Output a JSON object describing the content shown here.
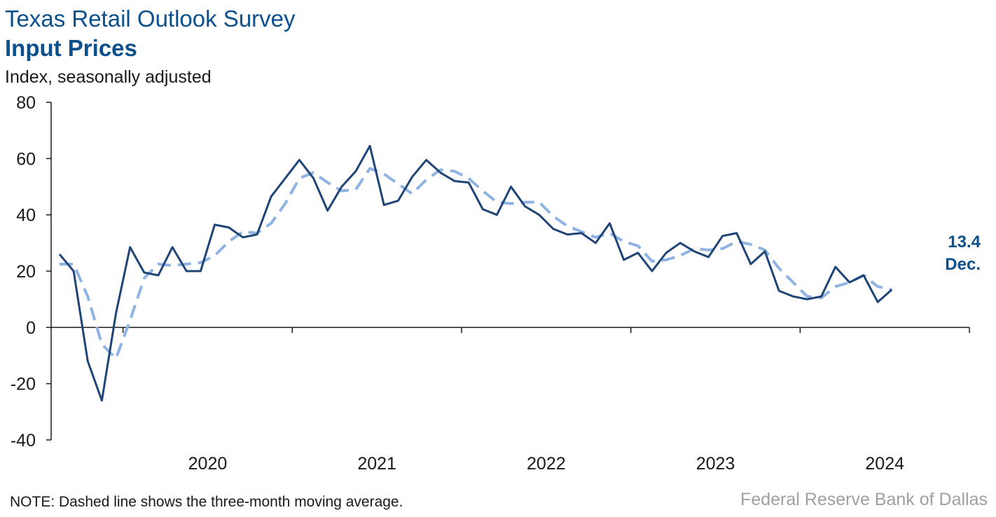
{
  "header": {
    "title": "Texas Retail Outlook Survey",
    "subtitle": "Input Prices",
    "units": "Index, seasonally adjusted"
  },
  "footer": {
    "note": "NOTE: Dashed line shows the three-month moving average.",
    "source": "Federal Reserve Bank of Dallas"
  },
  "colors": {
    "index_line": "#1f4476",
    "moving_average": "#8fb4e3",
    "title": "#0b4f8c",
    "axis": "#1a1a1a",
    "source_text": "#a0a0a0"
  },
  "chart_data": {
    "type": "line",
    "title": "Input Prices",
    "ylabel": "Index, seasonally adjusted",
    "xlabel": "",
    "ylim": [
      -40,
      80
    ],
    "y_ticks": [
      80,
      60,
      40,
      20,
      0,
      -20,
      -40
    ],
    "x_ticks": [
      "2020",
      "2021",
      "2022",
      "2023",
      "2024"
    ],
    "x_start": "2019-08",
    "x_end": "2024-12",
    "grid": false,
    "legend": "none",
    "series": [
      {
        "style": "solid",
        "values": [
          26,
          20,
          -12,
          -26,
          5,
          28.5,
          19.5,
          18.5,
          28.5,
          20,
          20,
          36.5,
          35.5,
          32,
          33,
          46.5,
          53,
          59.5,
          53,
          41.5,
          50,
          55.5,
          64.5,
          43.5,
          45,
          53.5,
          59.5,
          55,
          52,
          51.5,
          42,
          40,
          50,
          43,
          40,
          35,
          33,
          33.5,
          30,
          37,
          24,
          26.5,
          20,
          26.5,
          30,
          27,
          25,
          32.5,
          33.5,
          22.5,
          27,
          13,
          11,
          10,
          11,
          21.5,
          16,
          18.5,
          9,
          13.4
        ]
      },
      {
        "style": "dashed",
        "values": [
          22.5,
          22.5,
          11,
          -6,
          -11,
          2.5,
          17.5,
          22.5,
          22,
          22.5,
          23,
          25.5,
          30.5,
          34,
          33.5,
          37,
          44,
          53,
          55,
          51.5,
          48.5,
          49,
          56.5,
          54.5,
          51,
          47.5,
          52.5,
          56,
          55.5,
          53,
          48.5,
          44.5,
          44,
          44.5,
          44.5,
          39.5,
          36,
          34,
          32,
          33.5,
          30.5,
          29,
          23.5,
          24,
          25.5,
          28,
          27.5,
          28,
          30.5,
          29.5,
          27.5,
          21,
          16,
          11,
          10.5,
          14.5,
          16,
          18.5,
          14.5,
          13.4
        ]
      }
    ],
    "annotation": {
      "value": "13.4",
      "label": "Dec."
    }
  }
}
